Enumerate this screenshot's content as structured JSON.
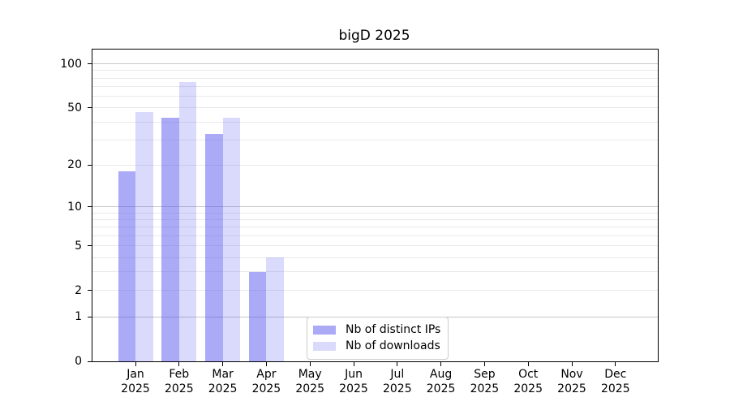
{
  "chart_data": {
    "type": "bar",
    "title": "bigD 2025",
    "categories": [
      "Jan",
      "Feb",
      "Mar",
      "Apr",
      "May",
      "Jun",
      "Jul",
      "Aug",
      "Sep",
      "Oct",
      "Nov",
      "Dec"
    ],
    "category_year": "2025",
    "series": [
      {
        "name": "Nb of distinct IPs",
        "color": "rgba(85,85,240,0.50)",
        "values": [
          18,
          43,
          33,
          3,
          0,
          0,
          0,
          0,
          0,
          0,
          0,
          0
        ]
      },
      {
        "name": "Nb of downloads",
        "color": "rgba(85,85,240,0.22)",
        "values": [
          47,
          75,
          43,
          4,
          0,
          0,
          0,
          0,
          0,
          0,
          0,
          0
        ]
      }
    ],
    "xlabel": "",
    "ylabel": "",
    "yscale": "log1p",
    "ylim": [
      0,
      125
    ],
    "yticks": [
      0,
      1,
      2,
      5,
      10,
      20,
      50,
      100
    ],
    "grid": {
      "major_lines": [
        1,
        10,
        100
      ],
      "minor_lines": [
        2,
        3,
        4,
        5,
        6,
        7,
        8,
        9,
        20,
        30,
        40,
        50,
        60,
        70,
        80,
        90
      ],
      "major_color": "#c6c6c6",
      "minor_color": "#e9e9e9"
    },
    "legend_position": "inside-bottom-center",
    "axis_color": "#000000",
    "text_color": "#000000",
    "background_color": "#ffffff"
  }
}
